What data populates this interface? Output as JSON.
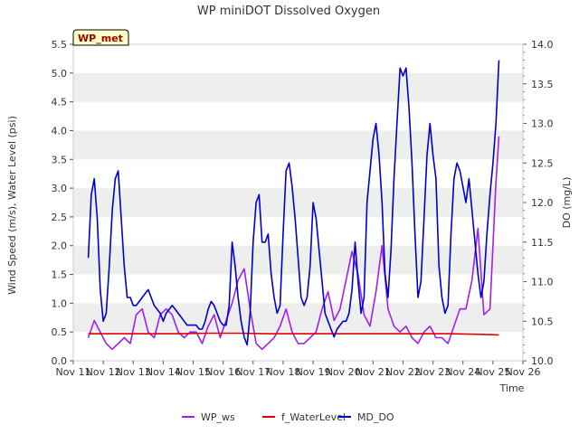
{
  "chart_data": {
    "type": "line",
    "title": "WP miniDOT Dissolved Oxygen",
    "station_label": "WP_met",
    "xlabel": "Time",
    "ylabel_left": "Wind Speed (m/s), Water Level (psi)",
    "ylabel_right": "DO (mg/L)",
    "ylim_left": [
      0,
      5.5
    ],
    "ylim_right": [
      10.0,
      14.0
    ],
    "xlim_days": [
      11,
      26
    ],
    "x_tick_labels": [
      "Nov 11",
      "Nov 12",
      "Nov 13",
      "Nov 14",
      "Nov 15",
      "Nov 16",
      "Nov 17",
      "Nov 18",
      "Nov 19",
      "Nov 20",
      "Nov 21",
      "Nov 22",
      "Nov 23",
      "Nov 24",
      "Nov 25",
      "Nov 26"
    ],
    "y_ticks_left": [
      "0.0",
      "0.5",
      "1.0",
      "1.5",
      "2.0",
      "2.5",
      "3.0",
      "3.5",
      "4.0",
      "4.5",
      "5.0",
      "5.5"
    ],
    "y_ticks_right": [
      "10.0",
      "10.5",
      "11.0",
      "11.5",
      "12.0",
      "12.5",
      "13.0",
      "13.5",
      "14.0"
    ],
    "grid": "horizontal bands",
    "legend_position": "bottom",
    "series": [
      {
        "name": "WP_ws",
        "axis": "left",
        "color": "#a020f0",
        "x": [
          11.5,
          11.7,
          11.9,
          12.1,
          12.3,
          12.5,
          12.7,
          12.9,
          13.1,
          13.3,
          13.5,
          13.7,
          13.9,
          14.1,
          14.3,
          14.5,
          14.7,
          14.9,
          15.1,
          15.3,
          15.5,
          15.7,
          15.9,
          16.1,
          16.3,
          16.5,
          16.7,
          16.9,
          17.1,
          17.3,
          17.5,
          17.7,
          17.9,
          18.1,
          18.3,
          18.5,
          18.7,
          18.9,
          19.1,
          19.3,
          19.5,
          19.7,
          19.9,
          20.1,
          20.3,
          20.5,
          20.7,
          20.9,
          21.1,
          21.3,
          21.5,
          21.7,
          21.9,
          22.1,
          22.3,
          22.5,
          22.7,
          22.9,
          23.1,
          23.3,
          23.5,
          23.7,
          23.9,
          24.1,
          24.3,
          24.5,
          24.7,
          24.9,
          25.1,
          25.2
        ],
        "y": [
          0.4,
          0.7,
          0.5,
          0.3,
          0.2,
          0.3,
          0.4,
          0.3,
          0.8,
          0.9,
          0.5,
          0.4,
          0.8,
          0.9,
          0.8,
          0.5,
          0.4,
          0.5,
          0.5,
          0.3,
          0.6,
          0.8,
          0.4,
          0.7,
          1.0,
          1.4,
          1.6,
          0.9,
          0.3,
          0.2,
          0.3,
          0.4,
          0.6,
          0.9,
          0.5,
          0.3,
          0.3,
          0.4,
          0.5,
          0.9,
          1.2,
          0.7,
          0.9,
          1.4,
          1.9,
          1.5,
          0.8,
          0.6,
          1.2,
          2.0,
          0.9,
          0.6,
          0.5,
          0.6,
          0.4,
          0.3,
          0.5,
          0.6,
          0.4,
          0.4,
          0.3,
          0.6,
          0.9,
          0.9,
          1.4,
          2.3,
          0.8,
          0.9,
          3.1,
          3.9
        ]
      },
      {
        "name": "f_WaterLevel",
        "axis": "left",
        "color": "#dd0000",
        "x": [
          11.5,
          12.5,
          13.5,
          14.5,
          15.5,
          16.5,
          17.5,
          18.5,
          19.5,
          20.5,
          21.5,
          22.5,
          23.5,
          24.5,
          25.2
        ],
        "y": [
          0.47,
          0.47,
          0.47,
          0.47,
          0.48,
          0.48,
          0.47,
          0.47,
          0.47,
          0.47,
          0.47,
          0.47,
          0.47,
          0.46,
          0.45
        ]
      },
      {
        "name": "MD_DO",
        "axis": "right",
        "color": "#0000cc",
        "x": [
          11.5,
          11.6,
          11.7,
          11.8,
          11.9,
          12.0,
          12.1,
          12.2,
          12.3,
          12.4,
          12.5,
          12.6,
          12.7,
          12.8,
          12.9,
          13.0,
          13.1,
          13.2,
          13.3,
          13.4,
          13.5,
          13.6,
          13.7,
          13.8,
          13.9,
          14.0,
          14.1,
          14.2,
          14.3,
          14.4,
          14.5,
          14.6,
          14.7,
          14.8,
          14.9,
          15.0,
          15.1,
          15.2,
          15.3,
          15.4,
          15.5,
          15.6,
          15.7,
          15.8,
          15.9,
          16.0,
          16.1,
          16.2,
          16.3,
          16.4,
          16.5,
          16.6,
          16.7,
          16.8,
          16.9,
          17.0,
          17.1,
          17.2,
          17.3,
          17.4,
          17.5,
          17.6,
          17.7,
          17.8,
          17.9,
          18.0,
          18.1,
          18.2,
          18.3,
          18.4,
          18.5,
          18.6,
          18.7,
          18.8,
          18.9,
          19.0,
          19.1,
          19.2,
          19.3,
          19.4,
          19.5,
          19.6,
          19.7,
          19.8,
          19.9,
          20.0,
          20.1,
          20.2,
          20.3,
          20.4,
          20.5,
          20.6,
          20.7,
          20.8,
          20.9,
          21.0,
          21.1,
          21.2,
          21.3,
          21.4,
          21.5,
          21.6,
          21.7,
          21.8,
          21.9,
          22.0,
          22.1,
          22.2,
          22.3,
          22.4,
          22.5,
          22.6,
          22.7,
          22.8,
          22.9,
          23.0,
          23.1,
          23.2,
          23.3,
          23.4,
          23.5,
          23.6,
          23.7,
          23.8,
          23.9,
          24.0,
          24.1,
          24.2,
          24.3,
          24.4,
          24.5,
          24.6,
          24.7,
          24.8,
          24.9,
          25.0,
          25.1,
          25.2
        ],
        "y": [
          11.3,
          12.1,
          12.3,
          11.8,
          10.9,
          10.5,
          10.6,
          11.2,
          11.9,
          12.3,
          12.4,
          11.8,
          11.2,
          10.8,
          10.8,
          10.7,
          10.7,
          10.75,
          10.8,
          10.85,
          10.9,
          10.8,
          10.7,
          10.65,
          10.6,
          10.5,
          10.6,
          10.65,
          10.7,
          10.65,
          10.6,
          10.55,
          10.5,
          10.45,
          10.45,
          10.45,
          10.45,
          10.4,
          10.4,
          10.5,
          10.65,
          10.75,
          10.7,
          10.6,
          10.5,
          10.45,
          10.45,
          10.7,
          11.5,
          11.2,
          10.8,
          10.5,
          10.3,
          10.2,
          10.6,
          11.5,
          12.0,
          12.1,
          11.5,
          11.5,
          11.6,
          11.1,
          10.8,
          10.6,
          10.7,
          11.6,
          12.4,
          12.5,
          12.2,
          11.8,
          11.3,
          10.8,
          10.7,
          10.8,
          11.2,
          12.0,
          11.8,
          11.4,
          11.0,
          10.6,
          10.5,
          10.4,
          10.3,
          10.4,
          10.45,
          10.5,
          10.5,
          10.6,
          10.9,
          11.5,
          11.0,
          10.6,
          10.8,
          12.0,
          12.4,
          12.8,
          13.0,
          12.6,
          12.0,
          11.1,
          10.8,
          11.4,
          12.3,
          13.0,
          13.7,
          13.6,
          13.7,
          13.2,
          12.5,
          11.6,
          10.8,
          11.0,
          11.8,
          12.6,
          13.0,
          12.6,
          12.3,
          11.2,
          10.8,
          10.6,
          10.7,
          11.6,
          12.3,
          12.5,
          12.4,
          12.2,
          12.0,
          12.3,
          11.9,
          11.5,
          11.1,
          10.8,
          11.0,
          11.6,
          12.1,
          12.5,
          13.0,
          13.8
        ]
      }
    ]
  }
}
